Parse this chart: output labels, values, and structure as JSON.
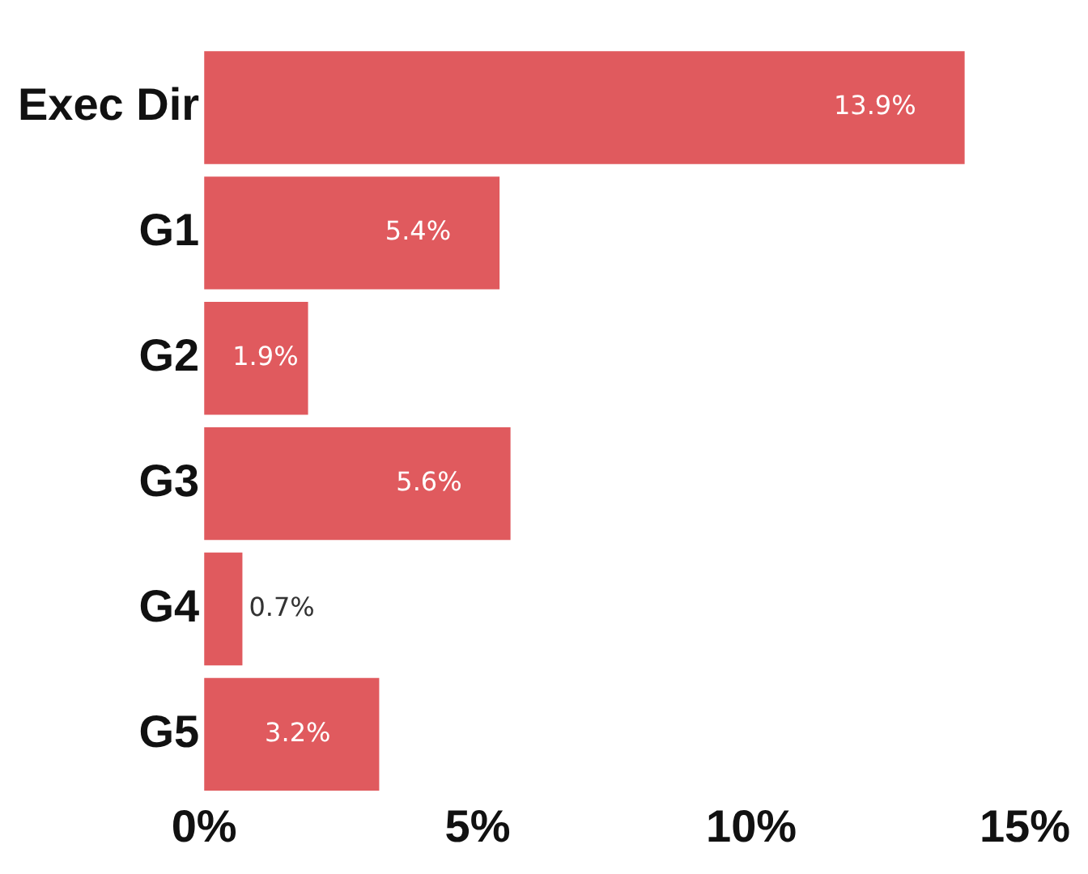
{
  "chart_data": {
    "type": "bar",
    "orientation": "horizontal",
    "categories": [
      "Exec Dir",
      "G1",
      "G2",
      "G3",
      "G4",
      "G5"
    ],
    "values": [
      13.9,
      5.4,
      1.9,
      5.6,
      0.7,
      3.2
    ],
    "value_labels": [
      "13.9%",
      "5.4%",
      "1.9%",
      "5.6%",
      "0.7%",
      "3.2%"
    ],
    "color": "#e05a5e",
    "xlim": [
      0,
      15
    ],
    "xticks": [
      {
        "value": 0,
        "label": "0%"
      },
      {
        "value": 5,
        "label": "5%"
      },
      {
        "value": 10,
        "label": "10%"
      },
      {
        "value": 15,
        "label": "15%"
      }
    ],
    "grid": false,
    "legend": false
  }
}
